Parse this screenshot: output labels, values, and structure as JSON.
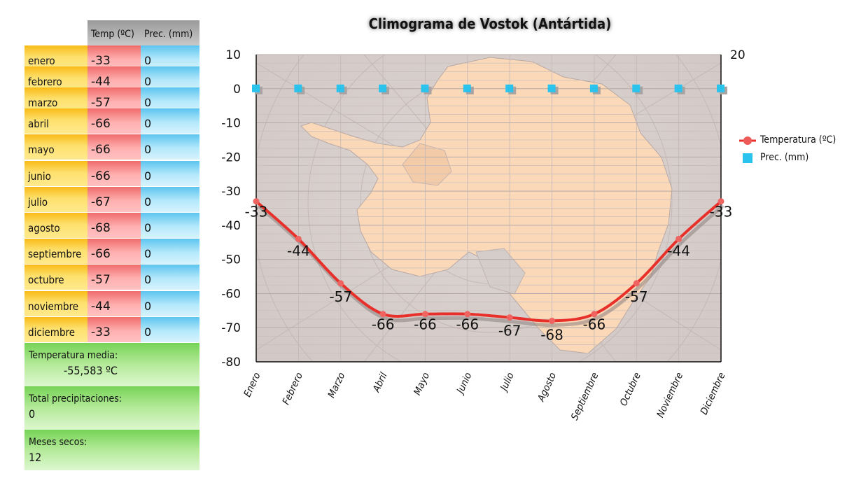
{
  "table": {
    "header_temp": "Temp (ºC)",
    "header_prec": "Prec. (mm)",
    "rows": [
      {
        "month": "enero",
        "temp": "-33",
        "prec": "0"
      },
      {
        "month": "febrero",
        "temp": "-44",
        "prec": "0"
      },
      {
        "month": "marzo",
        "temp": "-57",
        "prec": "0"
      },
      {
        "month": "abril",
        "temp": "-66",
        "prec": "0"
      },
      {
        "month": "mayo",
        "temp": "-66",
        "prec": "0"
      },
      {
        "month": "junio",
        "temp": "-66",
        "prec": "0"
      },
      {
        "month": "julio",
        "temp": "-67",
        "prec": "0"
      },
      {
        "month": "agosto",
        "temp": "-68",
        "prec": "0"
      },
      {
        "month": "septiembre",
        "temp": "-66",
        "prec": "0"
      },
      {
        "month": "octubre",
        "temp": "-57",
        "prec": "0"
      },
      {
        "month": "noviembre",
        "temp": "-44",
        "prec": "0"
      },
      {
        "month": "diciembre",
        "temp": "-33",
        "prec": "0"
      }
    ]
  },
  "summary": {
    "mean_label": "Temperatura media:",
    "mean_value": "-55,583 ºC",
    "precip_label": "Total precipitaciones:",
    "precip_value": "0",
    "dry_label": "Meses secos:",
    "dry_value": "12"
  },
  "chart_data": {
    "type": "line",
    "title": "Climograma de Vostok (Antártida)",
    "categories": [
      "Enero",
      "Febrero",
      "Marzo",
      "Abril",
      "Mayo",
      "Junio",
      "Julio",
      "Agosto",
      "Septiembre",
      "Octubre",
      "Noviembre",
      "Diciembre"
    ],
    "series": [
      {
        "name": "Temperatura (ºC)",
        "type": "line",
        "axis": "left",
        "color": "#e8302a",
        "values": [
          -33,
          -44,
          -57,
          -66,
          -66,
          -66,
          -67,
          -68,
          -66,
          -57,
          -44,
          -33
        ],
        "data_labels": [
          "-33",
          "-44",
          "-57",
          "-66",
          "-66",
          "-66",
          "-67",
          "-68",
          "-66",
          "-57",
          "-44",
          "-33"
        ]
      },
      {
        "name": "Prec. (mm)",
        "type": "scatter",
        "axis": "left",
        "color": "#29c3ee",
        "values": [
          0,
          0,
          0,
          0,
          0,
          0,
          0,
          0,
          0,
          0,
          0,
          0
        ]
      }
    ],
    "y_left": {
      "ylim": [
        -80,
        10
      ],
      "ticks": [
        "10",
        "0",
        "-10",
        "-20",
        "-30",
        "-40",
        "-50",
        "-60",
        "-70",
        "-80"
      ]
    },
    "y_right": {
      "ticks": [
        "20"
      ]
    },
    "grid": true,
    "legend": "right",
    "background": "Antarctica map"
  }
}
